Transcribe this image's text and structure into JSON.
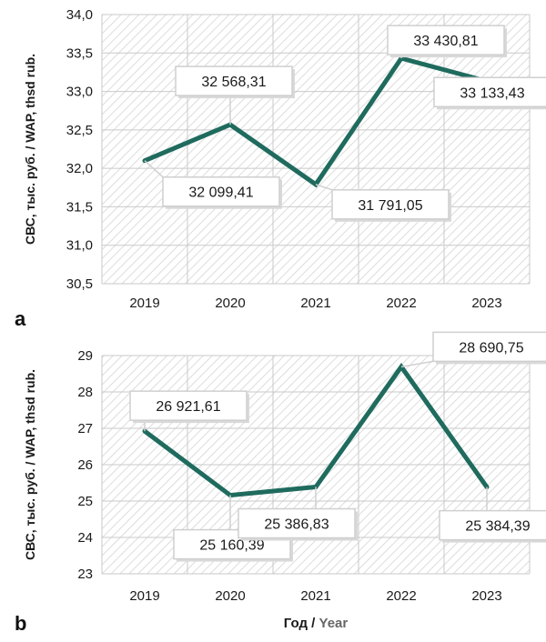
{
  "chart_data": [
    {
      "type": "line",
      "panel": "a",
      "x": [
        "2019",
        "2020",
        "2021",
        "2022",
        "2023"
      ],
      "values": [
        32099.41,
        32568.31,
        31791.05,
        33430.81,
        33133.43
      ],
      "data_labels": [
        "32 099,41",
        "32 568,31",
        "31 791,05",
        "33 430,81",
        "33 133,43"
      ],
      "y_ticks": [
        "30,5",
        "31,0",
        "31,5",
        "32,0",
        "32,5",
        "33,0",
        "33,5",
        "34,0"
      ],
      "ylim": [
        30.5,
        34.0
      ],
      "y_scale_divisor": 1000,
      "ylabel_ru": "СВС, тыс. руб. / ",
      "ylabel_en": "WAP, thsd rub.",
      "grid": true,
      "line_color": "#1f6b5e"
    },
    {
      "type": "line",
      "panel": "b",
      "x": [
        "2019",
        "2020",
        "2021",
        "2022",
        "2023"
      ],
      "values": [
        26921.61,
        25160.39,
        25386.83,
        28690.75,
        25384.39
      ],
      "data_labels": [
        "26 921,61",
        "25 160,39",
        "25 386,83",
        "28 690,75",
        "25 384,39"
      ],
      "y_ticks": [
        "23",
        "24",
        "25",
        "26",
        "27",
        "28",
        "29"
      ],
      "ylim": [
        23,
        29
      ],
      "y_scale_divisor": 1000,
      "ylabel_ru": "СВС, тыс. руб. / ",
      "ylabel_en": "WAP, thsd rub.",
      "xlabel_ru": "Год / ",
      "xlabel_en": "Year",
      "grid": true,
      "line_color": "#1f6b5e"
    }
  ]
}
